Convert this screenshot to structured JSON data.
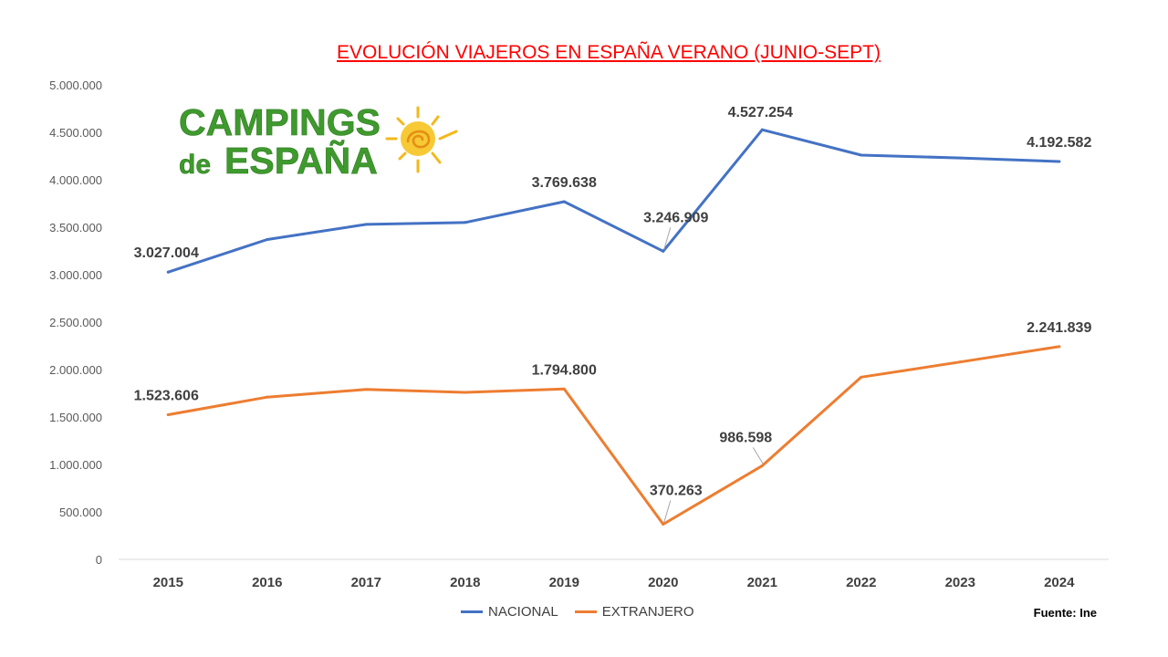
{
  "logo": {
    "line1": "CAMPINGS",
    "line2_a": "de",
    "line2_b": "ESPAÑA",
    "green": "#3f9a2e",
    "sun": "#f3b81c"
  },
  "source": "Fuente: Ine",
  "chart_data": {
    "type": "line",
    "title": "EVOLUCIÓN VIAJEROS EN ESPAÑA VERANO (JUNIO-SEPT)",
    "categories": [
      "2015",
      "2016",
      "2017",
      "2018",
      "2019",
      "2020",
      "2021",
      "2022",
      "2023",
      "2024"
    ],
    "ylim": [
      0,
      5000000
    ],
    "yticks": [
      "0",
      "500.000",
      "1.000.000",
      "1.500.000",
      "2.000.000",
      "2.500.000",
      "3.000.000",
      "3.500.000",
      "4.000.000",
      "4.500.000",
      "5.000.000"
    ],
    "ytick_values": [
      0,
      500000,
      1000000,
      1500000,
      2000000,
      2500000,
      3000000,
      3500000,
      4000000,
      4500000,
      5000000
    ],
    "grid": false,
    "legend_placement": "bottom",
    "series": [
      {
        "name": "NACIONAL",
        "color": "#4472c4",
        "values": [
          3027004,
          3370000,
          3530000,
          3550000,
          3769638,
          3246909,
          4527254,
          4260000,
          4230000,
          4192582
        ],
        "labels": [
          {
            "index": 0,
            "text": "3.027.004"
          },
          {
            "index": 4,
            "text": "3.769.638"
          },
          {
            "index": 5,
            "text": "3.246.909"
          },
          {
            "index": 6,
            "text": "4.527.254"
          },
          {
            "index": 9,
            "text": "4.192.582"
          }
        ]
      },
      {
        "name": "EXTRANJERO",
        "color": "#ed7d31",
        "values": [
          1523606,
          1710000,
          1790000,
          1760000,
          1794800,
          370263,
          986598,
          1920000,
          2080000,
          2241839
        ],
        "labels": [
          {
            "index": 0,
            "text": "1.523.606"
          },
          {
            "index": 4,
            "text": "1.794.800"
          },
          {
            "index": 5,
            "text": "370.263"
          },
          {
            "index": 6,
            "text": "986.598"
          },
          {
            "index": 9,
            "text": "2.241.839"
          }
        ]
      }
    ]
  }
}
